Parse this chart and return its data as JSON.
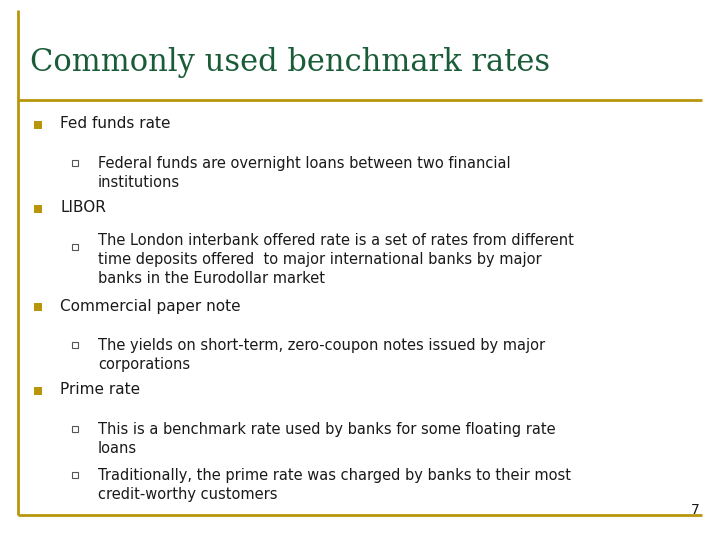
{
  "title": "Commonly used benchmark rates",
  "title_color": "#1a5c38",
  "title_fontsize": 22,
  "background_color": "#ffffff",
  "border_color": "#b8960c",
  "page_number": "7",
  "bullet_color": "#b8960c",
  "text_color": "#1a1a1a",
  "main_bullet_size": 11,
  "sub_bullet_size": 10.5,
  "items": [
    {
      "level": 1,
      "text": "Fed funds rate"
    },
    {
      "level": 2,
      "text": "Federal funds are overnight loans between two financial\ninstitutions"
    },
    {
      "level": 1,
      "text": "LIBOR"
    },
    {
      "level": 2,
      "text": "The London interbank offered rate is a set of rates from different\ntime deposits offered  to major international banks by major\nbanks in the Eurodollar market"
    },
    {
      "level": 1,
      "text": "Commercial paper note"
    },
    {
      "level": 2,
      "text": "The yields on short-term, zero-coupon notes issued by major\ncorporations"
    },
    {
      "level": 1,
      "text": "Prime rate"
    },
    {
      "level": 2,
      "text": "This is a benchmark rate used by banks for some floating rate\nloans"
    },
    {
      "level": 2,
      "text": "Traditionally, the prime rate was charged by banks to their most\ncredit-worthy customers"
    }
  ]
}
